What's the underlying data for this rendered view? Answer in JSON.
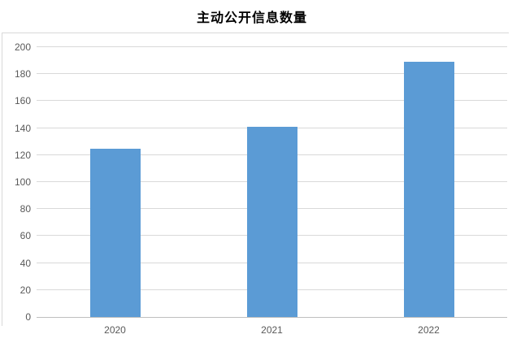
{
  "chart": {
    "title": "主动公开信息数量"
  },
  "chart_data": {
    "type": "bar",
    "title": "主动公开信息数量",
    "categories": [
      "2020",
      "2021",
      "2022"
    ],
    "values": [
      125,
      141,
      189
    ],
    "xlabel": "",
    "ylabel": "",
    "ylim": [
      0,
      200
    ],
    "ytick_step": 20,
    "grid": true,
    "legend_position": "none",
    "bar_color": "#5B9BD5",
    "gridline_color": "#D9D9D9",
    "axis_line_color": "#BFBFBF",
    "tick_label_color": "#595959",
    "title_color": "#000000"
  }
}
